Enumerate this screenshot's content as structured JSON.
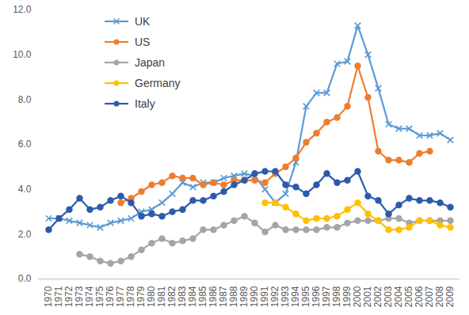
{
  "chart_data": {
    "type": "line",
    "categories": [
      "1970",
      "1971",
      "1972",
      "1973",
      "1974",
      "1975",
      "1976",
      "1977",
      "1978",
      "1979",
      "1980",
      "1981",
      "1982",
      "1983",
      "1984",
      "1985",
      "1986",
      "1987",
      "1988",
      "1989",
      "1990",
      "1991",
      "1992",
      "1993",
      "1994",
      "1995",
      "1996",
      "1997",
      "1998",
      "1999",
      "2000",
      "2001",
      "2002",
      "2003",
      "2004",
      "2005",
      "2006",
      "2007",
      "2008",
      "2009"
    ],
    "series": [
      {
        "name": "UK",
        "color": "#5b9bd5",
        "marker": "x",
        "values": [
          2.7,
          2.7,
          2.6,
          2.5,
          2.4,
          2.3,
          2.5,
          2.6,
          2.7,
          3.0,
          3.1,
          3.4,
          3.8,
          4.3,
          4.1,
          4.3,
          4.3,
          4.5,
          4.6,
          4.7,
          4.6,
          4.0,
          3.4,
          3.8,
          5.2,
          7.7,
          8.3,
          8.3,
          9.6,
          9.7,
          11.3,
          10.0,
          8.5,
          6.9,
          6.7,
          6.7,
          6.4,
          6.4,
          6.5,
          6.2
        ]
      },
      {
        "name": "US",
        "color": "#ed7d31",
        "marker": "circle",
        "values": [
          null,
          null,
          null,
          null,
          null,
          null,
          null,
          3.4,
          3.6,
          3.9,
          4.2,
          4.3,
          4.6,
          4.5,
          4.5,
          4.2,
          4.3,
          4.2,
          4.4,
          4.4,
          4.4,
          4.3,
          4.7,
          5.0,
          5.4,
          6.1,
          6.5,
          7.0,
          7.2,
          7.7,
          9.5,
          8.1,
          5.7,
          5.3,
          5.3,
          5.2,
          5.6,
          5.7,
          null,
          null
        ]
      },
      {
        "name": "Japan",
        "color": "#a5a5a5",
        "marker": "circle",
        "values": [
          null,
          null,
          null,
          1.1,
          1.0,
          0.8,
          0.7,
          0.8,
          1.0,
          1.3,
          1.6,
          1.8,
          1.6,
          1.7,
          1.8,
          2.2,
          2.2,
          2.4,
          2.6,
          2.8,
          2.5,
          2.1,
          2.4,
          2.2,
          2.2,
          2.2,
          2.2,
          2.3,
          2.3,
          2.5,
          2.6,
          2.6,
          2.6,
          2.7,
          2.7,
          2.5,
          2.6,
          2.6,
          2.6,
          2.6
        ]
      },
      {
        "name": "Germany",
        "color": "#ffc000",
        "marker": "circle",
        "values": [
          null,
          null,
          null,
          null,
          null,
          null,
          null,
          null,
          null,
          null,
          null,
          null,
          null,
          null,
          null,
          null,
          null,
          null,
          null,
          null,
          null,
          3.4,
          3.4,
          3.2,
          2.9,
          2.6,
          2.7,
          2.7,
          2.8,
          3.1,
          3.4,
          2.9,
          2.6,
          2.2,
          2.2,
          2.3,
          2.6,
          2.6,
          2.4,
          2.3
        ]
      },
      {
        "name": "Italy",
        "color": "#2e5aac",
        "marker": "circle",
        "values": [
          2.2,
          2.7,
          3.1,
          3.6,
          3.1,
          3.2,
          3.5,
          3.7,
          3.4,
          2.8,
          2.9,
          2.8,
          3.0,
          3.1,
          3.5,
          3.5,
          3.7,
          3.9,
          4.2,
          4.4,
          4.7,
          4.8,
          4.8,
          4.2,
          4.1,
          3.8,
          4.2,
          4.7,
          4.3,
          4.4,
          4.8,
          3.7,
          3.5,
          2.9,
          3.3,
          3.6,
          3.5,
          3.5,
          3.4,
          3.2
        ]
      }
    ],
    "ylim": [
      0,
      12
    ],
    "yticks": [
      {
        "value": 0,
        "label": "0.0"
      },
      {
        "value": 2,
        "label": "2.0"
      },
      {
        "value": 4,
        "label": "4.0"
      },
      {
        "value": 6,
        "label": "6.0"
      },
      {
        "value": 8,
        "label": "8.0"
      },
      {
        "value": 10,
        "label": "10.0"
      },
      {
        "value": 12,
        "label": "12.0"
      }
    ],
    "grid": false,
    "legend": "top-left"
  }
}
